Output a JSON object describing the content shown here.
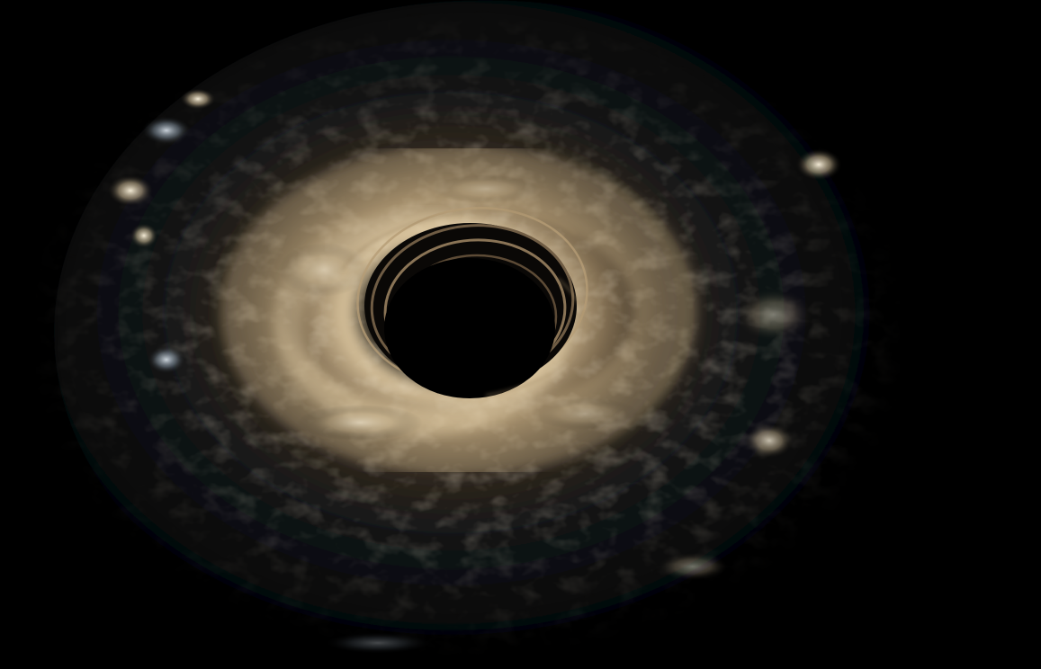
{
  "scene": {
    "subject": "black-hole-accretion-disk",
    "colors": {
      "background": "#000000",
      "disk_outer": "#0f1418",
      "disk_mid": "#3a3024",
      "disk_glow": "#d8c09a",
      "highlight": "#fff4dc",
      "cool_highlight": "#b8c8d8",
      "hole": "#000000"
    }
  }
}
